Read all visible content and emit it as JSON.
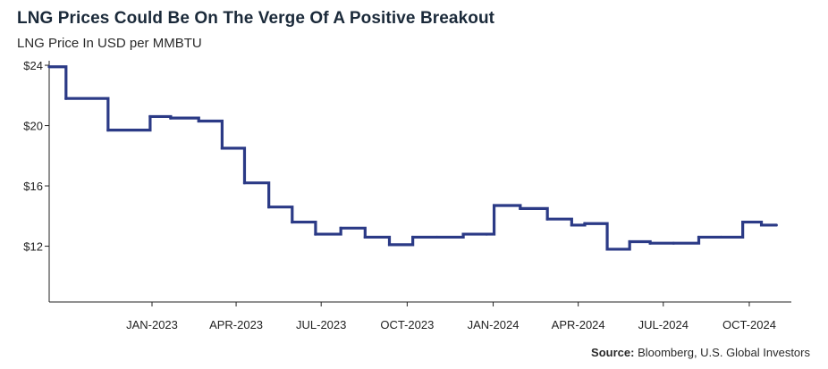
{
  "chart_data": {
    "type": "line",
    "title": "LNG Prices Could Be On The Verge Of A Positive Breakout",
    "subtitle": "LNG Price In USD per MMBTU",
    "xlabel": "",
    "ylabel": "",
    "step": true,
    "grid": false,
    "ylim": [
      8.3,
      24.3
    ],
    "xlim": [
      "2022-09-13",
      "2024-11-15"
    ],
    "y_ticks": [
      12,
      16,
      20,
      24
    ],
    "y_tick_labels": [
      "$12",
      "$16",
      "$20",
      "$24"
    ],
    "x_ticks": [
      "2023-01-01",
      "2023-04-01",
      "2023-07-01",
      "2023-10-01",
      "2024-01-01",
      "2024-04-01",
      "2024-07-01",
      "2024-10-01"
    ],
    "x_tick_labels": [
      "JAN-2023",
      "APR-2023",
      "JUL-2023",
      "OCT-2023",
      "JAN-2024",
      "APR-2024",
      "JUL-2024",
      "OCT-2024"
    ],
    "line_color": "#2b3a86",
    "series": [
      {
        "name": "",
        "x": [
          "2022-09-13",
          "2022-10-01",
          "2022-11-15",
          "2022-12-30",
          "2023-01-21",
          "2023-02-20",
          "2023-03-17",
          "2023-04-10",
          "2023-05-06",
          "2023-05-31",
          "2023-06-25",
          "2023-07-22",
          "2023-08-17",
          "2023-09-12",
          "2023-10-07",
          "2023-11-02",
          "2023-11-30",
          "2023-12-25",
          "2024-01-02",
          "2024-01-30",
          "2024-02-28",
          "2024-03-25",
          "2024-04-08",
          "2024-05-02",
          "2024-05-26",
          "2024-06-17",
          "2024-07-12",
          "2024-08-08",
          "2024-09-01",
          "2024-09-24",
          "2024-10-14",
          "2024-10-30"
        ],
        "values": [
          23.9,
          21.8,
          19.7,
          20.6,
          20.5,
          20.3,
          18.5,
          16.2,
          14.6,
          13.6,
          12.8,
          13.2,
          12.6,
          12.1,
          12.6,
          12.6,
          12.8,
          12.8,
          14.7,
          14.5,
          13.8,
          13.4,
          13.5,
          11.8,
          12.3,
          12.2,
          12.2,
          12.6,
          12.6,
          13.6,
          13.4,
          13.4
        ]
      }
    ]
  },
  "source": {
    "label": "Source:",
    "text": "Bloomberg, U.S. Global Investors"
  }
}
